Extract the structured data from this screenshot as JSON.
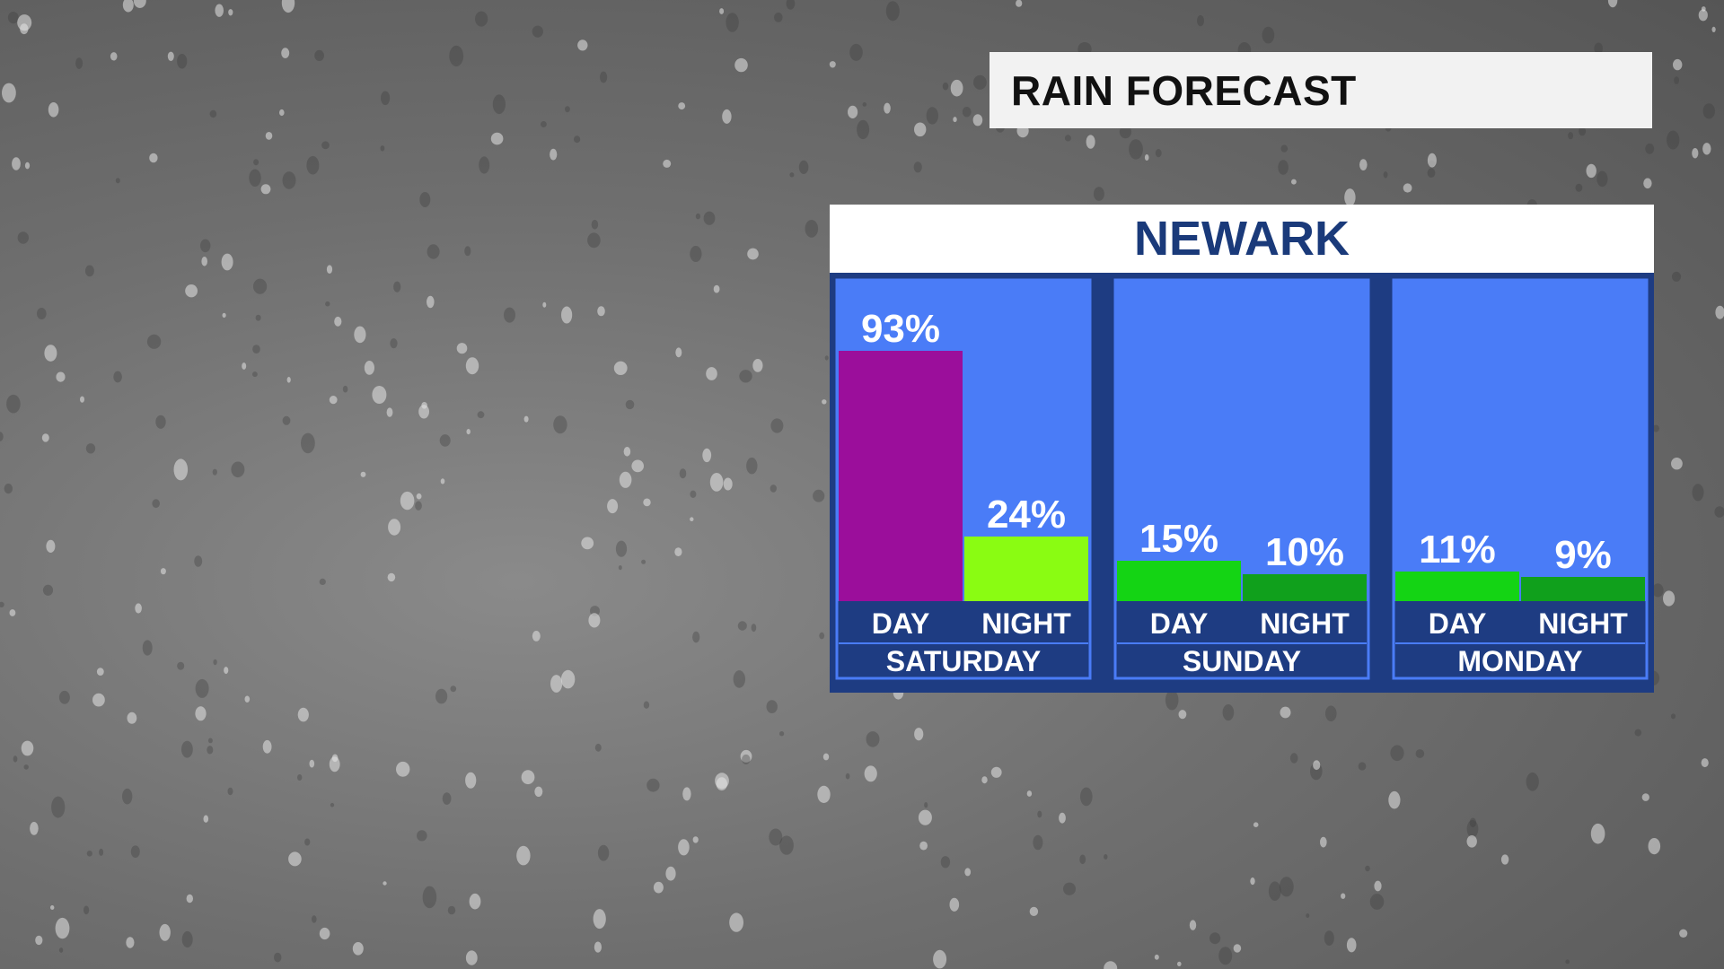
{
  "title": "RAIN FORECAST",
  "location": "NEWARK",
  "colors": {
    "panel_bg": "#4a7cf7",
    "frame": "#1e3c82",
    "saturday_day": "#9b0e9b",
    "saturday_night": "#8afc12",
    "light_green": "#14d414",
    "dark_green": "#10a01c"
  },
  "chart_data": {
    "type": "bar",
    "unit": "%",
    "groups": [
      {
        "day": "SATURDAY",
        "bars": [
          {
            "period": "DAY",
            "value": 93,
            "label": "93%",
            "color": "#9b0e9b"
          },
          {
            "period": "NIGHT",
            "value": 24,
            "label": "24%",
            "color": "#8afc12"
          }
        ]
      },
      {
        "day": "SUNDAY",
        "bars": [
          {
            "period": "DAY",
            "value": 15,
            "label": "15%",
            "color": "#14d414"
          },
          {
            "period": "NIGHT",
            "value": 10,
            "label": "10%",
            "color": "#10a01c"
          }
        ]
      },
      {
        "day": "MONDAY",
        "bars": [
          {
            "period": "DAY",
            "value": 11,
            "label": "11%",
            "color": "#14d414"
          },
          {
            "period": "NIGHT",
            "value": 9,
            "label": "9%",
            "color": "#10a01c"
          }
        ]
      }
    ],
    "ylim": [
      0,
      100
    ]
  }
}
